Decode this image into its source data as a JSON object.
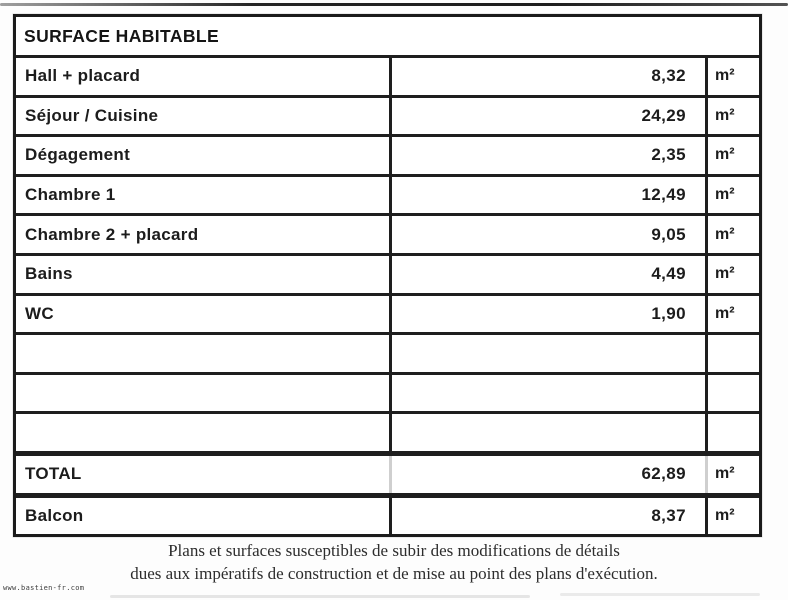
{
  "table": {
    "header": "SURFACE HABITABLE",
    "rows": [
      {
        "label": "Hall + placard",
        "value": "8,32",
        "unit": "m²"
      },
      {
        "label": "Séjour / Cuisine",
        "value": "24,29",
        "unit": "m²"
      },
      {
        "label": "Dégagement",
        "value": "2,35",
        "unit": "m²"
      },
      {
        "label": "Chambre 1",
        "value": "12,49",
        "unit": "m²"
      },
      {
        "label": "Chambre 2 + placard",
        "value": "9,05",
        "unit": "m²"
      },
      {
        "label": "Bains",
        "value": "4,49",
        "unit": "m²"
      },
      {
        "label": "WC",
        "value": "1,90",
        "unit": "m²"
      },
      {
        "label": "",
        "value": "",
        "unit": ""
      },
      {
        "label": "",
        "value": "",
        "unit": ""
      },
      {
        "label": "",
        "value": "",
        "unit": ""
      }
    ],
    "total": {
      "label": "TOTAL",
      "value": "62,89",
      "unit": "m²"
    },
    "balcon": {
      "label": "Balcon",
      "value": "8,37",
      "unit": "m²"
    }
  },
  "footer": {
    "line1": "Plans et surfaces susceptibles de subir des modifications de détails",
    "line2": "dues aux impératifs de construction et de mise au point des plans d'exécution."
  },
  "watermark": "www.bastien-fr.com"
}
